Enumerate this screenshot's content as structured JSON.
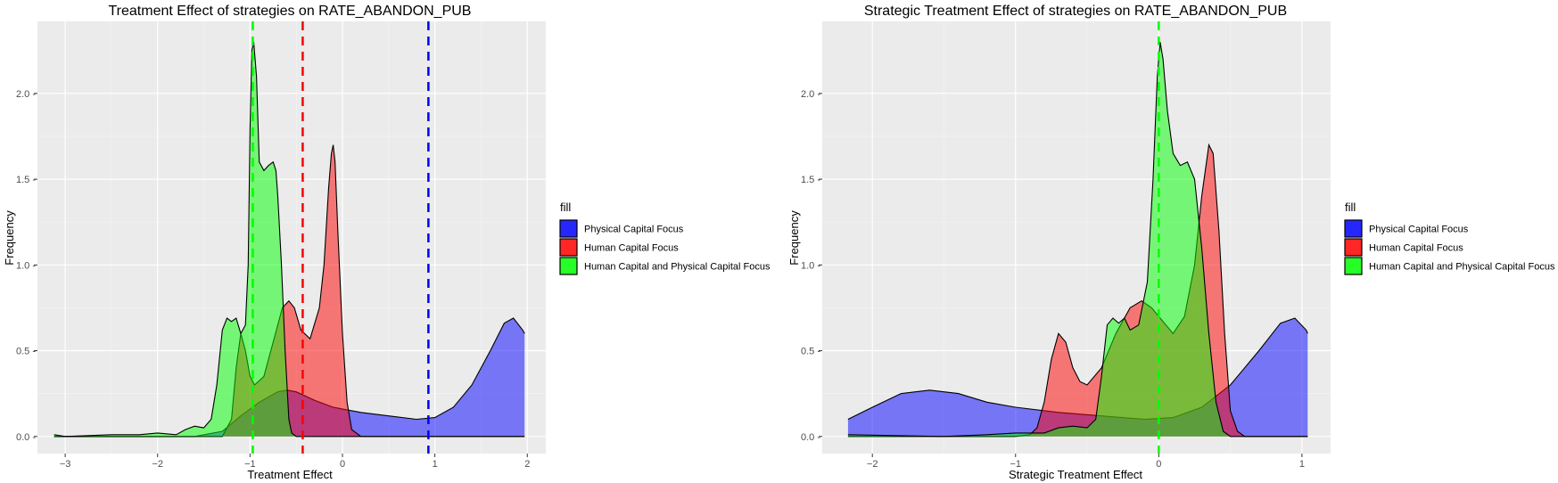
{
  "chart_data": [
    {
      "type": "area",
      "title": "Treatment Effect of strategies on RATE_ABANDON_PUB",
      "xlabel": "Treatment Effect",
      "ylabel": "Frequency",
      "xlim": [
        -3.3,
        2.2
      ],
      "ylim": [
        -0.1,
        2.42
      ],
      "x_ticks": [
        -3,
        -2,
        -1,
        0,
        1,
        2
      ],
      "y_ticks": [
        0.0,
        0.5,
        1.0,
        1.5,
        2.0
      ],
      "x_tick_labels": [
        "−3",
        "−2",
        "−1",
        "0",
        "1",
        "2"
      ],
      "y_tick_labels": [
        "0.0 -",
        "0.5 -",
        "1.0 -",
        "1.5 -",
        "2.0 -"
      ],
      "grid": true,
      "legend": {
        "position": "right",
        "title": "fill"
      },
      "series": [
        {
          "name": "Physical Capital Focus",
          "color": "#0000ff",
          "points": [
            [
              -3.12,
              0.0
            ],
            [
              -2.0,
              0.0
            ],
            [
              -1.6,
              0.0
            ],
            [
              -1.3,
              0.03
            ],
            [
              -1.1,
              0.12
            ],
            [
              -0.9,
              0.2
            ],
            [
              -0.7,
              0.26
            ],
            [
              -0.6,
              0.27
            ],
            [
              -0.5,
              0.26
            ],
            [
              -0.3,
              0.21
            ],
            [
              -0.1,
              0.17
            ],
            [
              0.2,
              0.14
            ],
            [
              0.5,
              0.12
            ],
            [
              0.8,
              0.1
            ],
            [
              1.0,
              0.11
            ],
            [
              1.2,
              0.17
            ],
            [
              1.4,
              0.3
            ],
            [
              1.6,
              0.5
            ],
            [
              1.75,
              0.66
            ],
            [
              1.85,
              0.69
            ],
            [
              1.95,
              0.62
            ],
            [
              1.97,
              0.6
            ]
          ],
          "mean_line": 0.93
        },
        {
          "name": "Human Capital Focus",
          "color": "#ff0000",
          "points": [
            [
              -3.12,
              0.0
            ],
            [
              -1.5,
              0.0
            ],
            [
              -1.3,
              0.0
            ],
            [
              -1.2,
              0.1
            ],
            [
              -1.15,
              0.4
            ],
            [
              -1.1,
              0.6
            ],
            [
              -1.05,
              0.5
            ],
            [
              -1.0,
              0.35
            ],
            [
              -0.95,
              0.3
            ],
            [
              -0.85,
              0.35
            ],
            [
              -0.75,
              0.55
            ],
            [
              -0.65,
              0.75
            ],
            [
              -0.58,
              0.79
            ],
            [
              -0.52,
              0.75
            ],
            [
              -0.45,
              0.62
            ],
            [
              -0.35,
              0.57
            ],
            [
              -0.25,
              0.75
            ],
            [
              -0.2,
              1.0
            ],
            [
              -0.15,
              1.45
            ],
            [
              -0.12,
              1.65
            ],
            [
              -0.1,
              1.7
            ],
            [
              -0.08,
              1.6
            ],
            [
              -0.05,
              1.2
            ],
            [
              0.0,
              0.6
            ],
            [
              0.05,
              0.2
            ],
            [
              0.1,
              0.04
            ],
            [
              0.2,
              0.0
            ],
            [
              1.97,
              0.0
            ]
          ],
          "mean_line": -0.43
        },
        {
          "name": "Human Capital and Physical Capital Focus",
          "color": "#00ff00",
          "points": [
            [
              -3.12,
              0.01
            ],
            [
              -3.0,
              0.0
            ],
            [
              -2.5,
              0.01
            ],
            [
              -2.2,
              0.01
            ],
            [
              -2.0,
              0.02
            ],
            [
              -1.8,
              0.01
            ],
            [
              -1.7,
              0.04
            ],
            [
              -1.6,
              0.06
            ],
            [
              -1.5,
              0.05
            ],
            [
              -1.42,
              0.1
            ],
            [
              -1.36,
              0.3
            ],
            [
              -1.3,
              0.62
            ],
            [
              -1.25,
              0.69
            ],
            [
              -1.2,
              0.67
            ],
            [
              -1.15,
              0.69
            ],
            [
              -1.1,
              0.6
            ],
            [
              -1.05,
              0.65
            ],
            [
              -1.02,
              1.0
            ],
            [
              -1.0,
              1.8
            ],
            [
              -0.98,
              2.25
            ],
            [
              -0.96,
              2.3
            ],
            [
              -0.93,
              2.1
            ],
            [
              -0.9,
              1.6
            ],
            [
              -0.85,
              1.55
            ],
            [
              -0.8,
              1.58
            ],
            [
              -0.75,
              1.6
            ],
            [
              -0.72,
              1.55
            ],
            [
              -0.7,
              1.4
            ],
            [
              -0.66,
              1.0
            ],
            [
              -0.62,
              0.5
            ],
            [
              -0.58,
              0.1
            ],
            [
              -0.55,
              0.02
            ],
            [
              -0.5,
              0.0
            ],
            [
              1.97,
              0.0
            ]
          ],
          "mean_line": -0.97
        }
      ]
    },
    {
      "type": "area",
      "title": "Strategic Treatment Effect of strategies on RATE_ABANDON_PUB",
      "xlabel": "Strategic Treatment Effect",
      "ylabel": "Frequency",
      "xlim": [
        -2.35,
        1.2
      ],
      "ylim": [
        -0.1,
        2.42
      ],
      "x_ticks": [
        -2,
        -1,
        0,
        1
      ],
      "y_ticks": [
        0.0,
        0.5,
        1.0,
        1.5,
        2.0
      ],
      "x_tick_labels": [
        "−2",
        "−1",
        "0",
        "1"
      ],
      "y_tick_labels": [
        "0.0 -",
        "0.5 -",
        "1.0 -",
        "1.5 -",
        "2.0 -"
      ],
      "grid": true,
      "legend": {
        "position": "right",
        "title": "fill"
      },
      "series": [
        {
          "name": "Physical Capital Focus",
          "color": "#0000ff",
          "points": [
            [
              -2.17,
              0.1
            ],
            [
              -2.0,
              0.17
            ],
            [
              -1.8,
              0.25
            ],
            [
              -1.6,
              0.27
            ],
            [
              -1.4,
              0.25
            ],
            [
              -1.2,
              0.2
            ],
            [
              -1.0,
              0.17
            ],
            [
              -0.7,
              0.14
            ],
            [
              -0.4,
              0.12
            ],
            [
              -0.1,
              0.1
            ],
            [
              0.1,
              0.11
            ],
            [
              0.3,
              0.17
            ],
            [
              0.5,
              0.3
            ],
            [
              0.7,
              0.5
            ],
            [
              0.85,
              0.66
            ],
            [
              0.95,
              0.69
            ],
            [
              1.03,
              0.62
            ],
            [
              1.04,
              0.6
            ]
          ],
          "mean_line": null
        },
        {
          "name": "Human Capital Focus",
          "color": "#ff0000",
          "points": [
            [
              -2.17,
              0.0
            ],
            [
              -1.0,
              0.0
            ],
            [
              -0.9,
              0.01
            ],
            [
              -0.85,
              0.05
            ],
            [
              -0.8,
              0.2
            ],
            [
              -0.75,
              0.45
            ],
            [
              -0.7,
              0.6
            ],
            [
              -0.65,
              0.55
            ],
            [
              -0.6,
              0.4
            ],
            [
              -0.55,
              0.32
            ],
            [
              -0.5,
              0.3
            ],
            [
              -0.4,
              0.4
            ],
            [
              -0.3,
              0.6
            ],
            [
              -0.2,
              0.75
            ],
            [
              -0.12,
              0.79
            ],
            [
              -0.05,
              0.75
            ],
            [
              0.0,
              0.7
            ],
            [
              0.1,
              0.6
            ],
            [
              0.18,
              0.7
            ],
            [
              0.25,
              1.0
            ],
            [
              0.3,
              1.4
            ],
            [
              0.35,
              1.7
            ],
            [
              0.38,
              1.65
            ],
            [
              0.42,
              1.2
            ],
            [
              0.46,
              0.6
            ],
            [
              0.5,
              0.15
            ],
            [
              0.55,
              0.03
            ],
            [
              0.6,
              0.0
            ],
            [
              1.04,
              0.0
            ]
          ],
          "mean_line": null
        },
        {
          "name": "Human Capital and Physical Capital Focus",
          "color": "#00ff00",
          "points": [
            [
              -2.17,
              0.01
            ],
            [
              -1.5,
              0.0
            ],
            [
              -1.2,
              0.01
            ],
            [
              -1.0,
              0.02
            ],
            [
              -0.8,
              0.02
            ],
            [
              -0.7,
              0.05
            ],
            [
              -0.6,
              0.06
            ],
            [
              -0.5,
              0.05
            ],
            [
              -0.44,
              0.1
            ],
            [
              -0.4,
              0.35
            ],
            [
              -0.36,
              0.65
            ],
            [
              -0.32,
              0.69
            ],
            [
              -0.28,
              0.66
            ],
            [
              -0.24,
              0.69
            ],
            [
              -0.2,
              0.62
            ],
            [
              -0.14,
              0.65
            ],
            [
              -0.08,
              0.9
            ],
            [
              -0.04,
              1.5
            ],
            [
              -0.01,
              2.1
            ],
            [
              0.01,
              2.3
            ],
            [
              0.03,
              2.2
            ],
            [
              0.06,
              1.9
            ],
            [
              0.1,
              1.65
            ],
            [
              0.15,
              1.58
            ],
            [
              0.2,
              1.6
            ],
            [
              0.25,
              1.5
            ],
            [
              0.3,
              1.1
            ],
            [
              0.35,
              0.6
            ],
            [
              0.4,
              0.2
            ],
            [
              0.45,
              0.03
            ],
            [
              0.5,
              0.0
            ],
            [
              1.04,
              0.0
            ]
          ],
          "mean_line": 0.0
        }
      ]
    }
  ]
}
